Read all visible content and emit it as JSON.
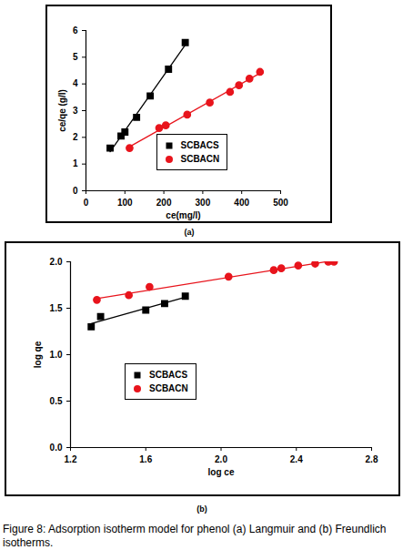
{
  "chart_data": [
    {
      "type": "scatter",
      "title": "(a)",
      "x_label": "ce(mg/l)",
      "y_label": "ce/qe (g/l)",
      "xlim": [
        0,
        500
      ],
      "xticks": [
        0,
        100,
        200,
        300,
        400,
        500
      ],
      "ylim": [
        0,
        6
      ],
      "yticks": [
        0,
        1,
        2,
        3,
        4,
        5,
        6
      ],
      "legend": "lower center",
      "series": [
        {
          "name": "SCBACS",
          "color": "#000000",
          "marker": "square",
          "line_style": "solid",
          "x": [
            62,
            90,
            100,
            130,
            165,
            212,
            255
          ],
          "values": [
            1.6,
            2.05,
            2.2,
            2.75,
            3.55,
            4.55,
            5.55
          ]
        },
        {
          "name": "SCBACN",
          "color": "#e8141c",
          "marker": "circle",
          "line_style": "solid",
          "x": [
            112,
            188,
            205,
            260,
            318,
            370,
            393,
            420,
            447
          ],
          "values": [
            1.6,
            2.35,
            2.45,
            2.85,
            3.3,
            3.7,
            3.95,
            4.2,
            4.45
          ]
        }
      ]
    },
    {
      "type": "scatter",
      "title": "(b)",
      "x_label": "log ce",
      "y_label": "log qe",
      "xlim": [
        1.2,
        2.8
      ],
      "xticks": [
        1.2,
        1.6,
        {
          "value": 2,
          "label": "2.0"
        },
        2.4,
        2.8
      ],
      "ylim": [
        0,
        2
      ],
      "yticks": [
        {
          "value": 0,
          "label": "0.0"
        },
        0.5,
        {
          "value": 1,
          "label": "1.0"
        },
        1.5,
        {
          "value": 2,
          "label": "2.0"
        }
      ],
      "legend": "lower left",
      "series": [
        {
          "name": "SCBACS",
          "color": "#000000",
          "marker": "square",
          "line_style": "solid",
          "x": [
            1.31,
            1.36,
            1.6,
            1.7,
            1.81
          ],
          "values": [
            1.3,
            1.41,
            1.48,
            1.55,
            1.63
          ]
        },
        {
          "name": "SCBACN",
          "color": "#e8141c",
          "marker": "circle",
          "line_style": "solid",
          "x": [
            1.34,
            1.51,
            1.62,
            2.04,
            2.28,
            2.32,
            2.41,
            2.5,
            2.57,
            2.6
          ],
          "values": [
            1.59,
            1.64,
            1.73,
            1.84,
            1.91,
            1.93,
            1.96,
            1.98,
            2.0,
            2.0
          ]
        }
      ]
    }
  ],
  "caption": "Figure 8: Adsorption isotherm model for phenol (a) Langmuir and (b) Freundlich isotherms."
}
